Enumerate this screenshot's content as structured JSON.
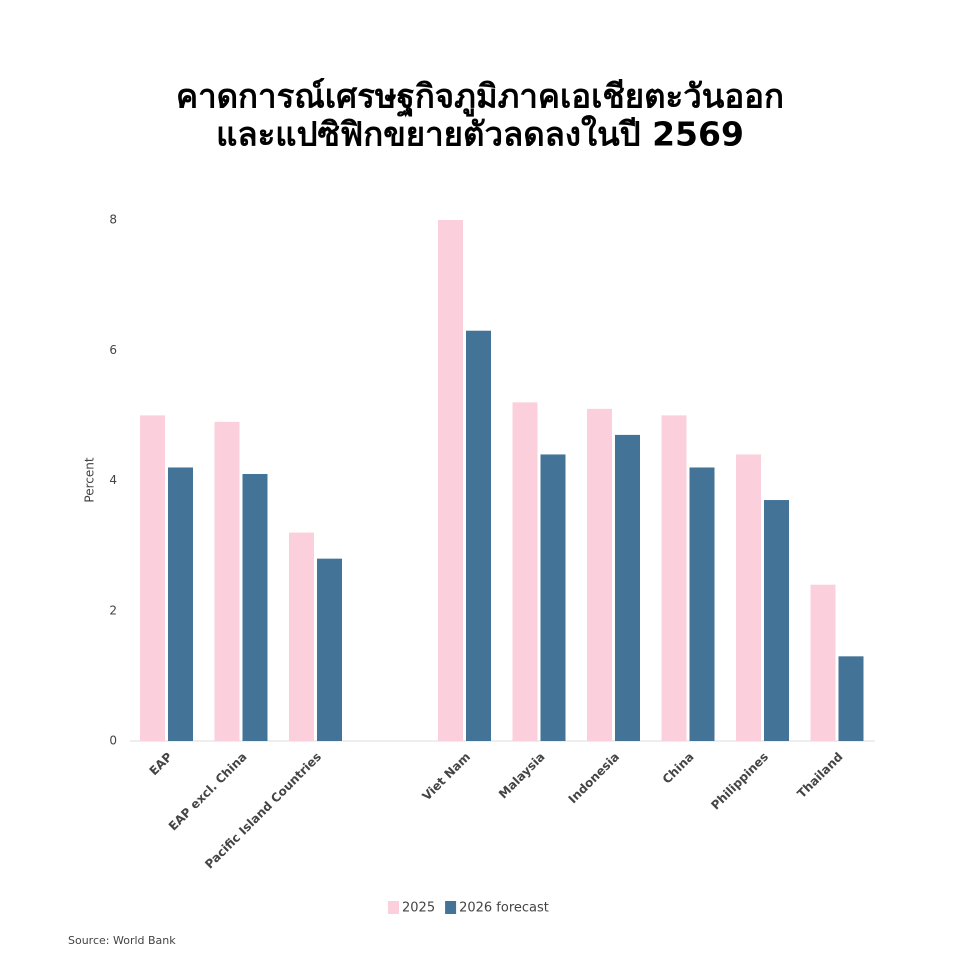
{
  "chart_data": {
    "type": "bar",
    "title": [
      "คาดการณ์เศรษฐกิจภูมิภาคเอเชียตะวันออก",
      "และแปซิฟิกขยายตัวลดลงในปี 2569"
    ],
    "y_label": "Percent",
    "source": "Source: World Bank",
    "categories": [
      "EAP",
      "EAP excl. China",
      "Pacific Island Countries",
      null,
      "Viet Nam",
      "Malaysia",
      "Indonesia",
      "China",
      "Philippines",
      "Thailand"
    ],
    "series": [
      {
        "name": "2025",
        "color": "#fccfdc",
        "values": [
          5.0,
          4.9,
          3.2,
          null,
          8.0,
          5.2,
          5.1,
          5.0,
          4.4,
          2.4
        ]
      },
      {
        "name": "2026 forecast",
        "color": "#437396",
        "values": [
          4.2,
          4.1,
          2.8,
          null,
          6.3,
          4.4,
          4.7,
          4.2,
          3.7,
          1.3
        ]
      }
    ],
    "ylim": [
      0,
      8
    ],
    "yticks": [
      0,
      2,
      4,
      6,
      8
    ],
    "grid": false,
    "legend": "bottom"
  }
}
